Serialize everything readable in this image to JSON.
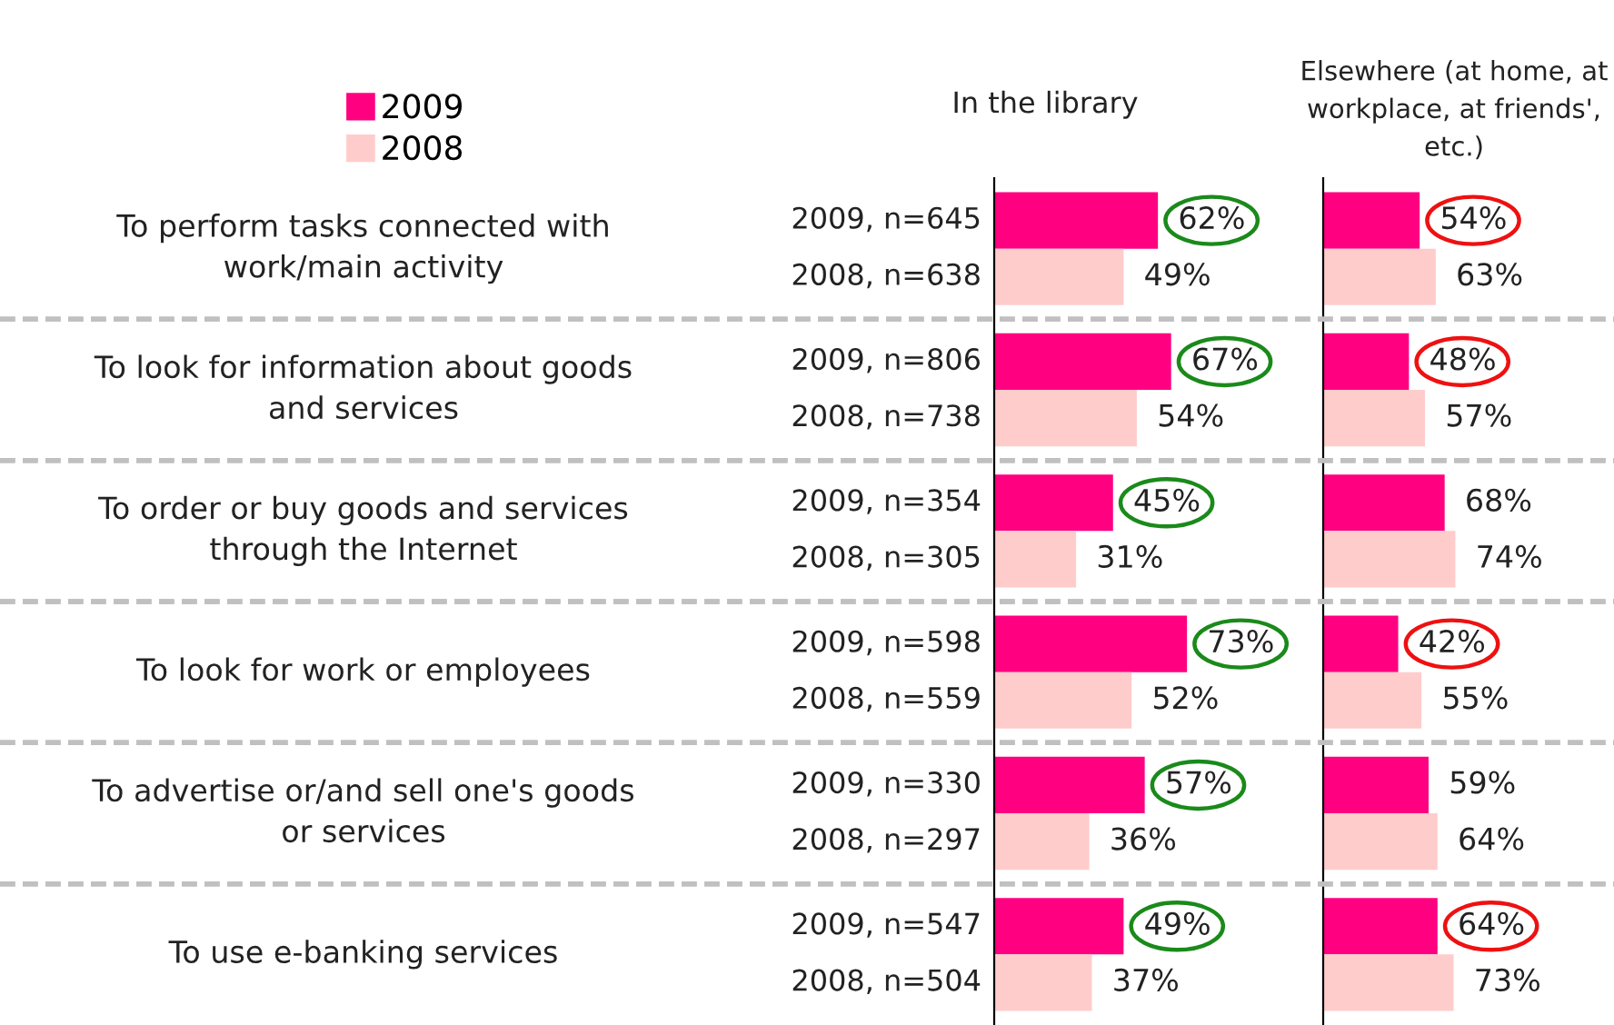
{
  "chart_data": [
    {
      "type": "bar",
      "orientation": "horizontal",
      "title": "In the library",
      "categories": [
        "To perform tasks connected with\nwork/main activity",
        "To look for information about goods\nand services",
        "To order or buy goods and services\nthrough the Internet",
        "To look for work or employees",
        "To advertise or/and sell one's goods\nor services",
        "To use e-banking services"
      ],
      "series": [
        {
          "name": "2009",
          "color": "#ff0080",
          "values": [
            62,
            67,
            45,
            73,
            57,
            49
          ],
          "value_labels": [
            "62%",
            "67%",
            "45%",
            "73%",
            "57%",
            "49%"
          ]
        },
        {
          "name": "2008",
          "color": "#ffcccc",
          "values": [
            49,
            54,
            31,
            52,
            36,
            37
          ],
          "value_labels": [
            "49%",
            "54%",
            "31%",
            "52%",
            "36%",
            "37%"
          ]
        }
      ],
      "annotations": [
        "2009, n=645",
        "2008, n=638",
        "2009, n=806",
        "2008, n=738",
        "2009, n=354",
        "2008, n=305",
        "2009, n=598",
        "2008, n=559",
        "2009, n=330",
        "2008, n=297",
        "2009, n=547",
        "2008, n=504"
      ],
      "tick_labels": "y",
      "grid": "y",
      "legend": "top left"
    },
    {
      "type": "bar",
      "orientation": "horizontal",
      "title": "Elsewhere (at home, at\nworkplace, at friends',\netc.)",
      "categories": [
        null,
        null,
        null,
        null,
        null,
        null
      ],
      "series": [
        {
          "name": "2009",
          "color": "#ff0080",
          "values": [
            54,
            48,
            68,
            42,
            59,
            64
          ],
          "value_labels": [
            "54%",
            "48%",
            "68%",
            "42%",
            "59%",
            "64%"
          ]
        },
        {
          "name": "2008",
          "color": "#ffcccc",
          "values": [
            63,
            57,
            74,
            55,
            64,
            73
          ],
          "value_labels": [
            "63%",
            "57%",
            "74%",
            "55%",
            "64%",
            "73%"
          ]
        }
      ],
      "tick_labels": false,
      "grid": "y"
    }
  ]
}
